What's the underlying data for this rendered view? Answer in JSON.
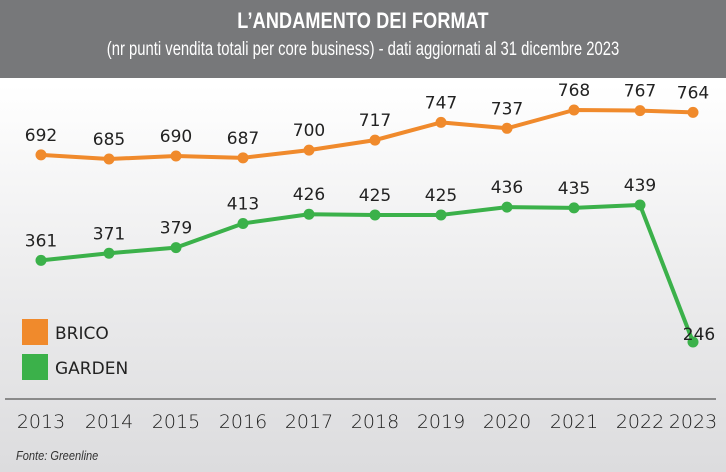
{
  "header": {
    "title": "L’ANDAMENTO DEI FORMAT",
    "subtitle": "(nr punti vendita totali per core business) - dati aggiornati al 31 dicembre 2023"
  },
  "source": "Fonte: Greenline",
  "chart_data": {
    "type": "line",
    "title": "L’ANDAMENTO DEI FORMAT",
    "subtitle": "(nr punti vendita totali per core business) - dati aggiornati al 31 dicembre 2023",
    "xlabel": "",
    "ylabel": "",
    "categories": [
      "2013",
      "2014",
      "2015",
      "2016",
      "2017",
      "2018",
      "2019",
      "2020",
      "2021",
      "2022",
      "2023"
    ],
    "series": [
      {
        "name": "BRICO",
        "color": "#f08a2c",
        "values": [
          692,
          685,
          690,
          687,
          700,
          717,
          747,
          737,
          768,
          767,
          764
        ]
      },
      {
        "name": "GARDEN",
        "color": "#3bb14a",
        "values": [
          361,
          371,
          379,
          413,
          426,
          425,
          425,
          436,
          435,
          439,
          246
        ]
      }
    ],
    "grid": false,
    "legend": "bottom-left",
    "source": "Fonte: Greenline"
  }
}
